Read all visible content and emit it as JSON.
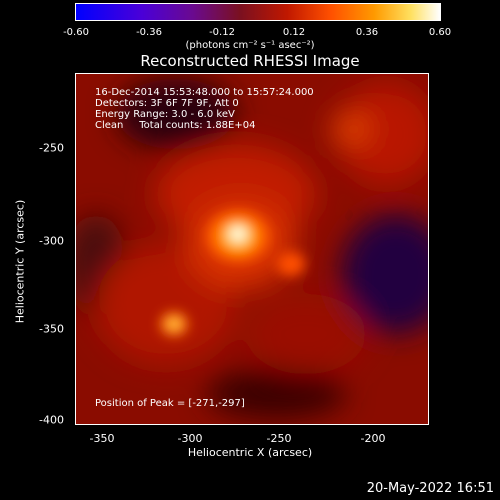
{
  "colorbar": {
    "ticks": [
      "-0.60",
      "-0.36",
      "-0.12",
      "0.12",
      "0.36",
      "0.60"
    ],
    "unit_label": "(photons cm⁻² s⁻¹ asec⁻²)"
  },
  "title": "Reconstructed RHESSI Image",
  "info": {
    "line1": "16-Dec-2014 15:53:48.000 to 15:57:24.000",
    "line2": "Detectors: 3F 6F 7F 9F, Att 0",
    "line3": "Energy Range: 3.0 - 6.0 keV",
    "line4": "Clean     Total counts: 1.88E+04",
    "peak": "Position of Peak = [-271,-297]"
  },
  "axes": {
    "xlabel": "Heliocentric X (arcsec)",
    "ylabel": "Heliocentric Y (arcsec)",
    "xticks": [
      "-350",
      "-300",
      "-250",
      "-200"
    ],
    "yticks": [
      "-250",
      "-300",
      "-350",
      "-400"
    ]
  },
  "timestamp": "20-May-2022 16:51"
}
